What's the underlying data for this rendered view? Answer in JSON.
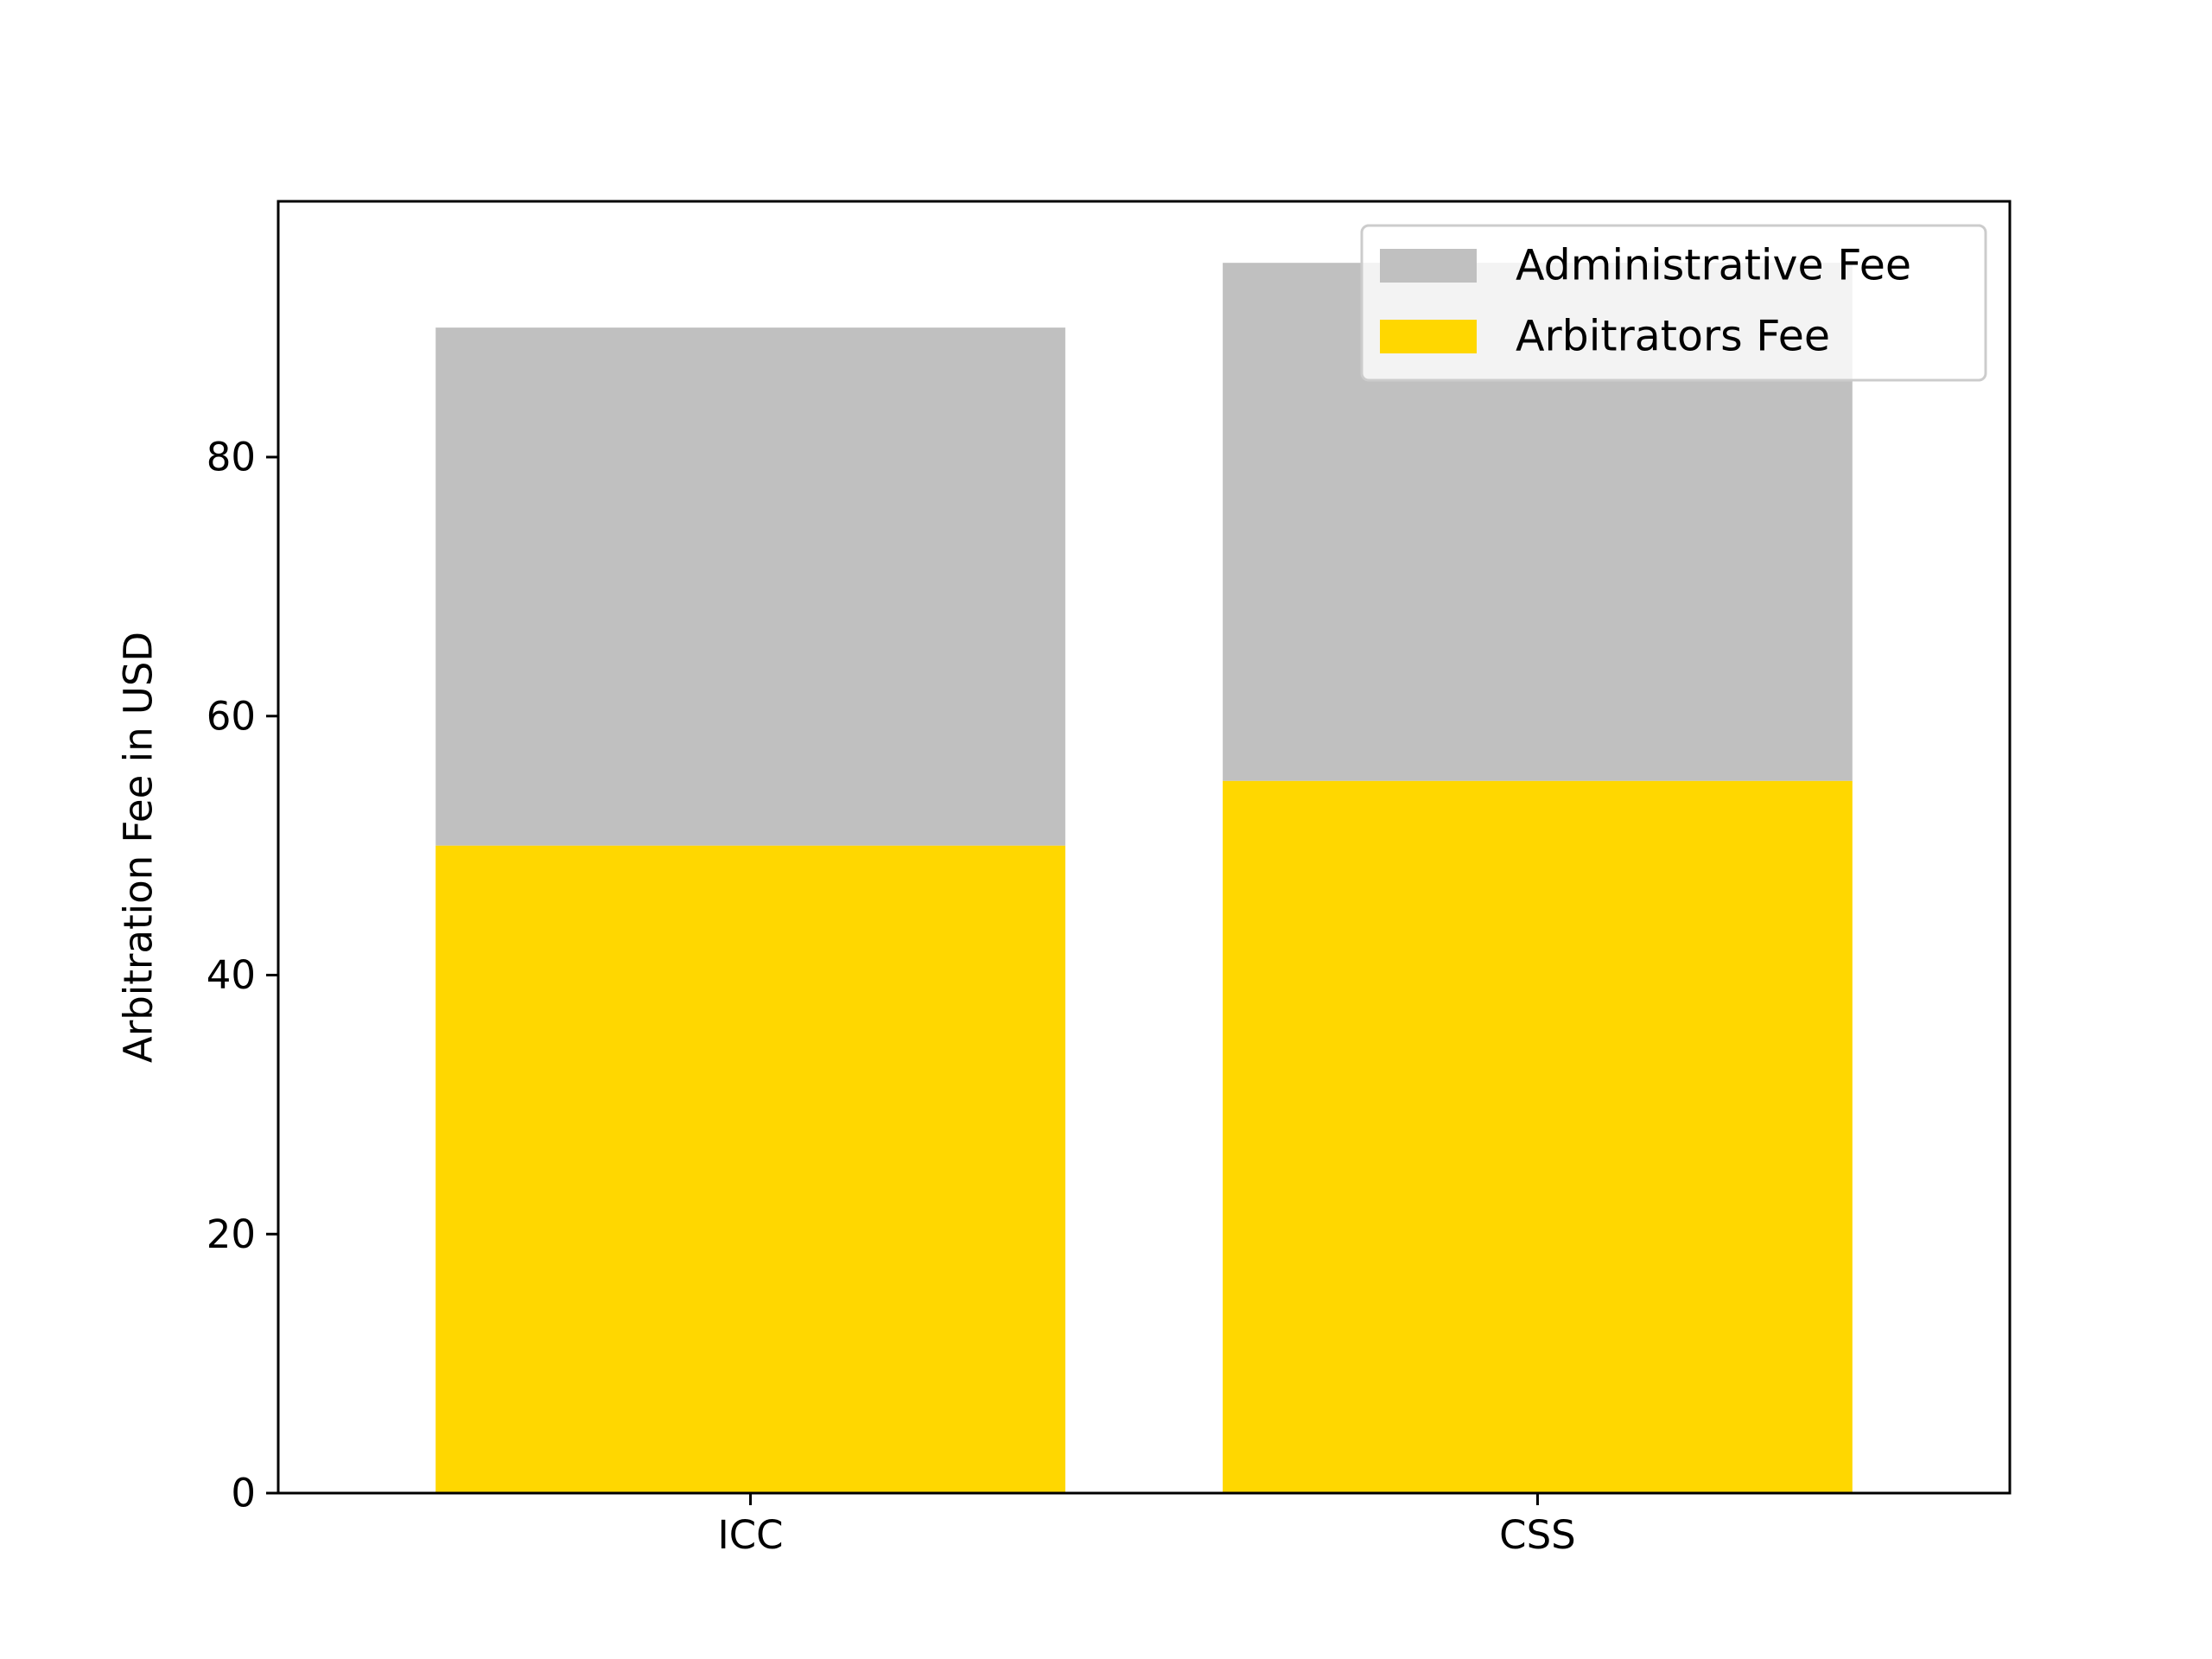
{
  "chart_data": {
    "type": "bar",
    "stacked": true,
    "categories": [
      "ICC",
      "CSS"
    ],
    "series": [
      {
        "name": "Arbitrators Fee",
        "values": [
          50,
          55
        ],
        "color": "#FFD700"
      },
      {
        "name": "Administrative Fee",
        "values": [
          40,
          40
        ],
        "color": "#C0C0C0"
      }
    ],
    "title": "",
    "xlabel": "",
    "ylabel": "Arbitration Fee in USD",
    "ylim": [
      0,
      99.75
    ],
    "yticks": [
      0,
      20,
      40,
      60,
      80
    ],
    "grid": false,
    "legend": {
      "position": "top-right",
      "entries": [
        "Administrative Fee",
        "Arbitrators Fee"
      ]
    }
  }
}
